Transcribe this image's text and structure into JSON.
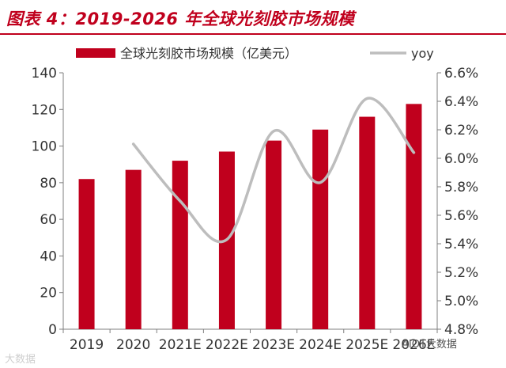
{
  "figure": {
    "title": "图表 4：2019-2026 年全球光刻胶市场规模"
  },
  "watermarks": {
    "left": "大数据",
    "right": "AIOT大数据"
  },
  "colors": {
    "accent": "#c0001d",
    "bar": "#c0001d",
    "line": "#bdbdbd",
    "axis": "#7f7f7f",
    "text": "#333333"
  },
  "chart_data": {
    "type": "bar",
    "categories": [
      "2019",
      "2020",
      "2021E",
      "2022E",
      "2023E",
      "2024E",
      "2025E",
      "2026E"
    ],
    "series": [
      {
        "name": "全球光刻胶市场规模（亿美元）",
        "type": "bar",
        "axis": "left",
        "values": [
          82,
          87,
          92,
          97,
          103,
          109,
          116,
          123
        ]
      },
      {
        "name": "yoy",
        "type": "line",
        "axis": "right",
        "values": [
          null,
          6.1,
          5.7,
          5.43,
          6.19,
          5.83,
          6.42,
          6.04
        ]
      }
    ],
    "y_left": {
      "min": 0,
      "max": 140,
      "ticks": [
        0,
        20,
        40,
        60,
        80,
        100,
        120,
        140
      ]
    },
    "y_right": {
      "min": 4.8,
      "max": 6.6,
      "ticks": [
        "4.8%",
        "5.0%",
        "5.2%",
        "5.4%",
        "5.6%",
        "5.8%",
        "6.0%",
        "6.2%",
        "6.4%",
        "6.6%"
      ]
    },
    "legend_position": "top",
    "grid": false
  }
}
